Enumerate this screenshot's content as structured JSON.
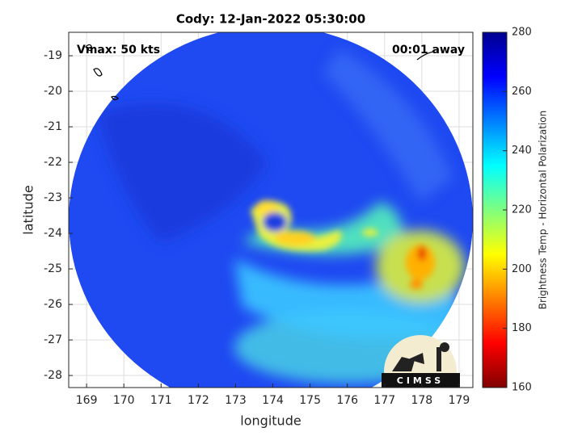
{
  "title": "Cody: 12-Jan-2022 05:30:00",
  "annotations": {
    "left": "Vmax: 50 kts",
    "right": "00:01 away",
    "logo": "CIMSS"
  },
  "axes": {
    "xlabel": "longitude",
    "ylabel": "latitude",
    "xlim": [
      168.52,
      179.37
    ],
    "xticks": [
      169,
      170,
      171,
      172,
      173,
      174,
      175,
      176,
      177,
      178,
      179
    ],
    "ylim": [
      -28.34,
      -18.34
    ],
    "yticks": [
      -28,
      -27,
      -26,
      -25,
      -24,
      -23,
      -22,
      -21,
      -20,
      -19
    ],
    "grid": true
  },
  "colorbar": {
    "label": "Brightness Temp - Horizontal Polarization",
    "lim": [
      160,
      280
    ],
    "ticks": [
      160,
      180,
      200,
      220,
      240,
      260,
      280
    ],
    "colormap": "jet"
  }
}
